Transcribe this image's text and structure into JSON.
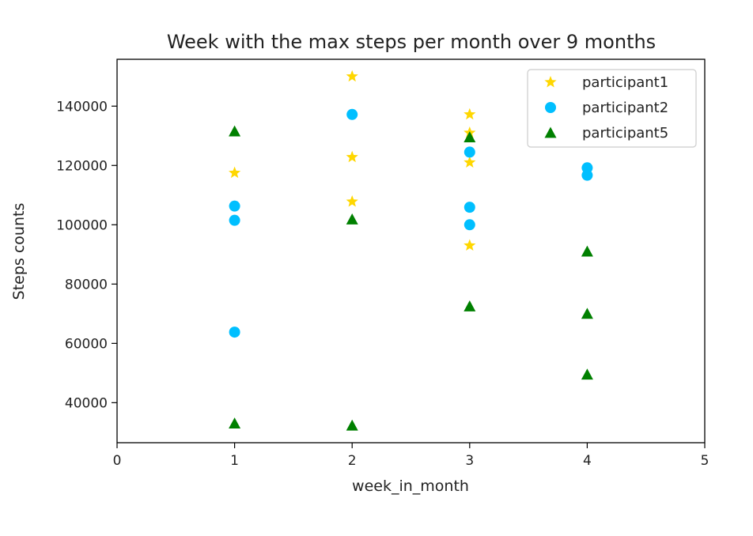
{
  "chart_data": {
    "type": "scatter",
    "title": "Week with the max steps per month over 9 months",
    "xlabel": "week_in_month",
    "ylabel": "Steps counts",
    "xlim": [
      0,
      5
    ],
    "ylim": [
      26500,
      155800
    ],
    "xticks": [
      0,
      1,
      2,
      3,
      4,
      5
    ],
    "yticks": [
      40000,
      60000,
      80000,
      100000,
      120000,
      140000
    ],
    "grid": false,
    "legend_position": "top-right",
    "series": [
      {
        "name": "participant1",
        "marker": "star",
        "color": "#ffd700",
        "points": [
          {
            "x": 1,
            "y": 117500
          },
          {
            "x": 2,
            "y": 150000
          },
          {
            "x": 2,
            "y": 122800
          },
          {
            "x": 2,
            "y": 107800
          },
          {
            "x": 3,
            "y": 137200
          },
          {
            "x": 3,
            "y": 131000
          },
          {
            "x": 3,
            "y": 121000
          },
          {
            "x": 3,
            "y": 93000
          }
        ]
      },
      {
        "name": "participant2",
        "marker": "circle",
        "color": "#00bfff",
        "points": [
          {
            "x": 1,
            "y": 106300
          },
          {
            "x": 1,
            "y": 101500
          },
          {
            "x": 1,
            "y": 63800
          },
          {
            "x": 2,
            "y": 137200
          },
          {
            "x": 3,
            "y": 124500
          },
          {
            "x": 3,
            "y": 105900
          },
          {
            "x": 3,
            "y": 100000
          },
          {
            "x": 4,
            "y": 119200
          },
          {
            "x": 4,
            "y": 116700
          }
        ]
      },
      {
        "name": "participant5",
        "marker": "triangle",
        "color": "#008000",
        "points": [
          {
            "x": 1,
            "y": 131500
          },
          {
            "x": 1,
            "y": 33000
          },
          {
            "x": 2,
            "y": 101800
          },
          {
            "x": 2,
            "y": 32300
          },
          {
            "x": 3,
            "y": 129500
          },
          {
            "x": 3,
            "y": 72500
          },
          {
            "x": 4,
            "y": 91000
          },
          {
            "x": 4,
            "y": 70000
          },
          {
            "x": 4,
            "y": 49500
          }
        ]
      }
    ]
  }
}
